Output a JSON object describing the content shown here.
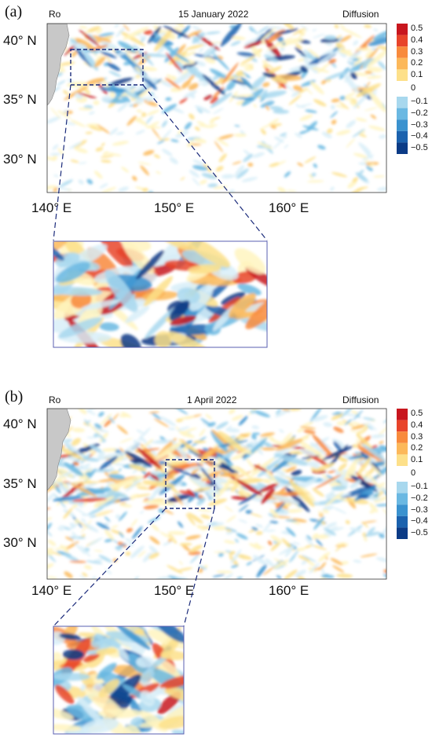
{
  "panels": [
    {
      "letter": "(a)",
      "variable": "Ro",
      "date": "15 January 2022",
      "scheme": "Diffusion",
      "lat_ticks": [
        "40° N",
        "35° N",
        "30° N"
      ],
      "lon_ticks": [
        "140° E",
        "150° E",
        "160° E"
      ],
      "colorbar_ticks": [
        "0.5",
        "0.4",
        "0.3",
        "0.2",
        "0.1",
        "0",
        "−0.1",
        "−0.2",
        "−0.3",
        "−0.4",
        "−0.5"
      ]
    },
    {
      "letter": "(b)",
      "variable": "Ro",
      "date": "1 April 2022",
      "scheme": "Diffusion",
      "lat_ticks": [
        "40° N",
        "35° N",
        "30° N"
      ],
      "lon_ticks": [
        "140° E",
        "150° E",
        "160° E"
      ],
      "colorbar_ticks": [
        "0.5",
        "0.4",
        "0.3",
        "0.2",
        "0.1",
        "0",
        "−0.1",
        "−0.2",
        "−0.3",
        "−0.4",
        "−0.5"
      ]
    }
  ],
  "colors": {
    "positive": [
      "#fff5c0",
      "#fde08a",
      "#fcb85a",
      "#f88a3c",
      "#e8442a",
      "#c8161e"
    ],
    "negative": [
      "#d8eef8",
      "#a8d8ee",
      "#6ab8e2",
      "#3a92cf",
      "#1b62ae",
      "#0b3b86"
    ],
    "land": "#c8c8c8",
    "box": "#1a2a7a"
  }
}
